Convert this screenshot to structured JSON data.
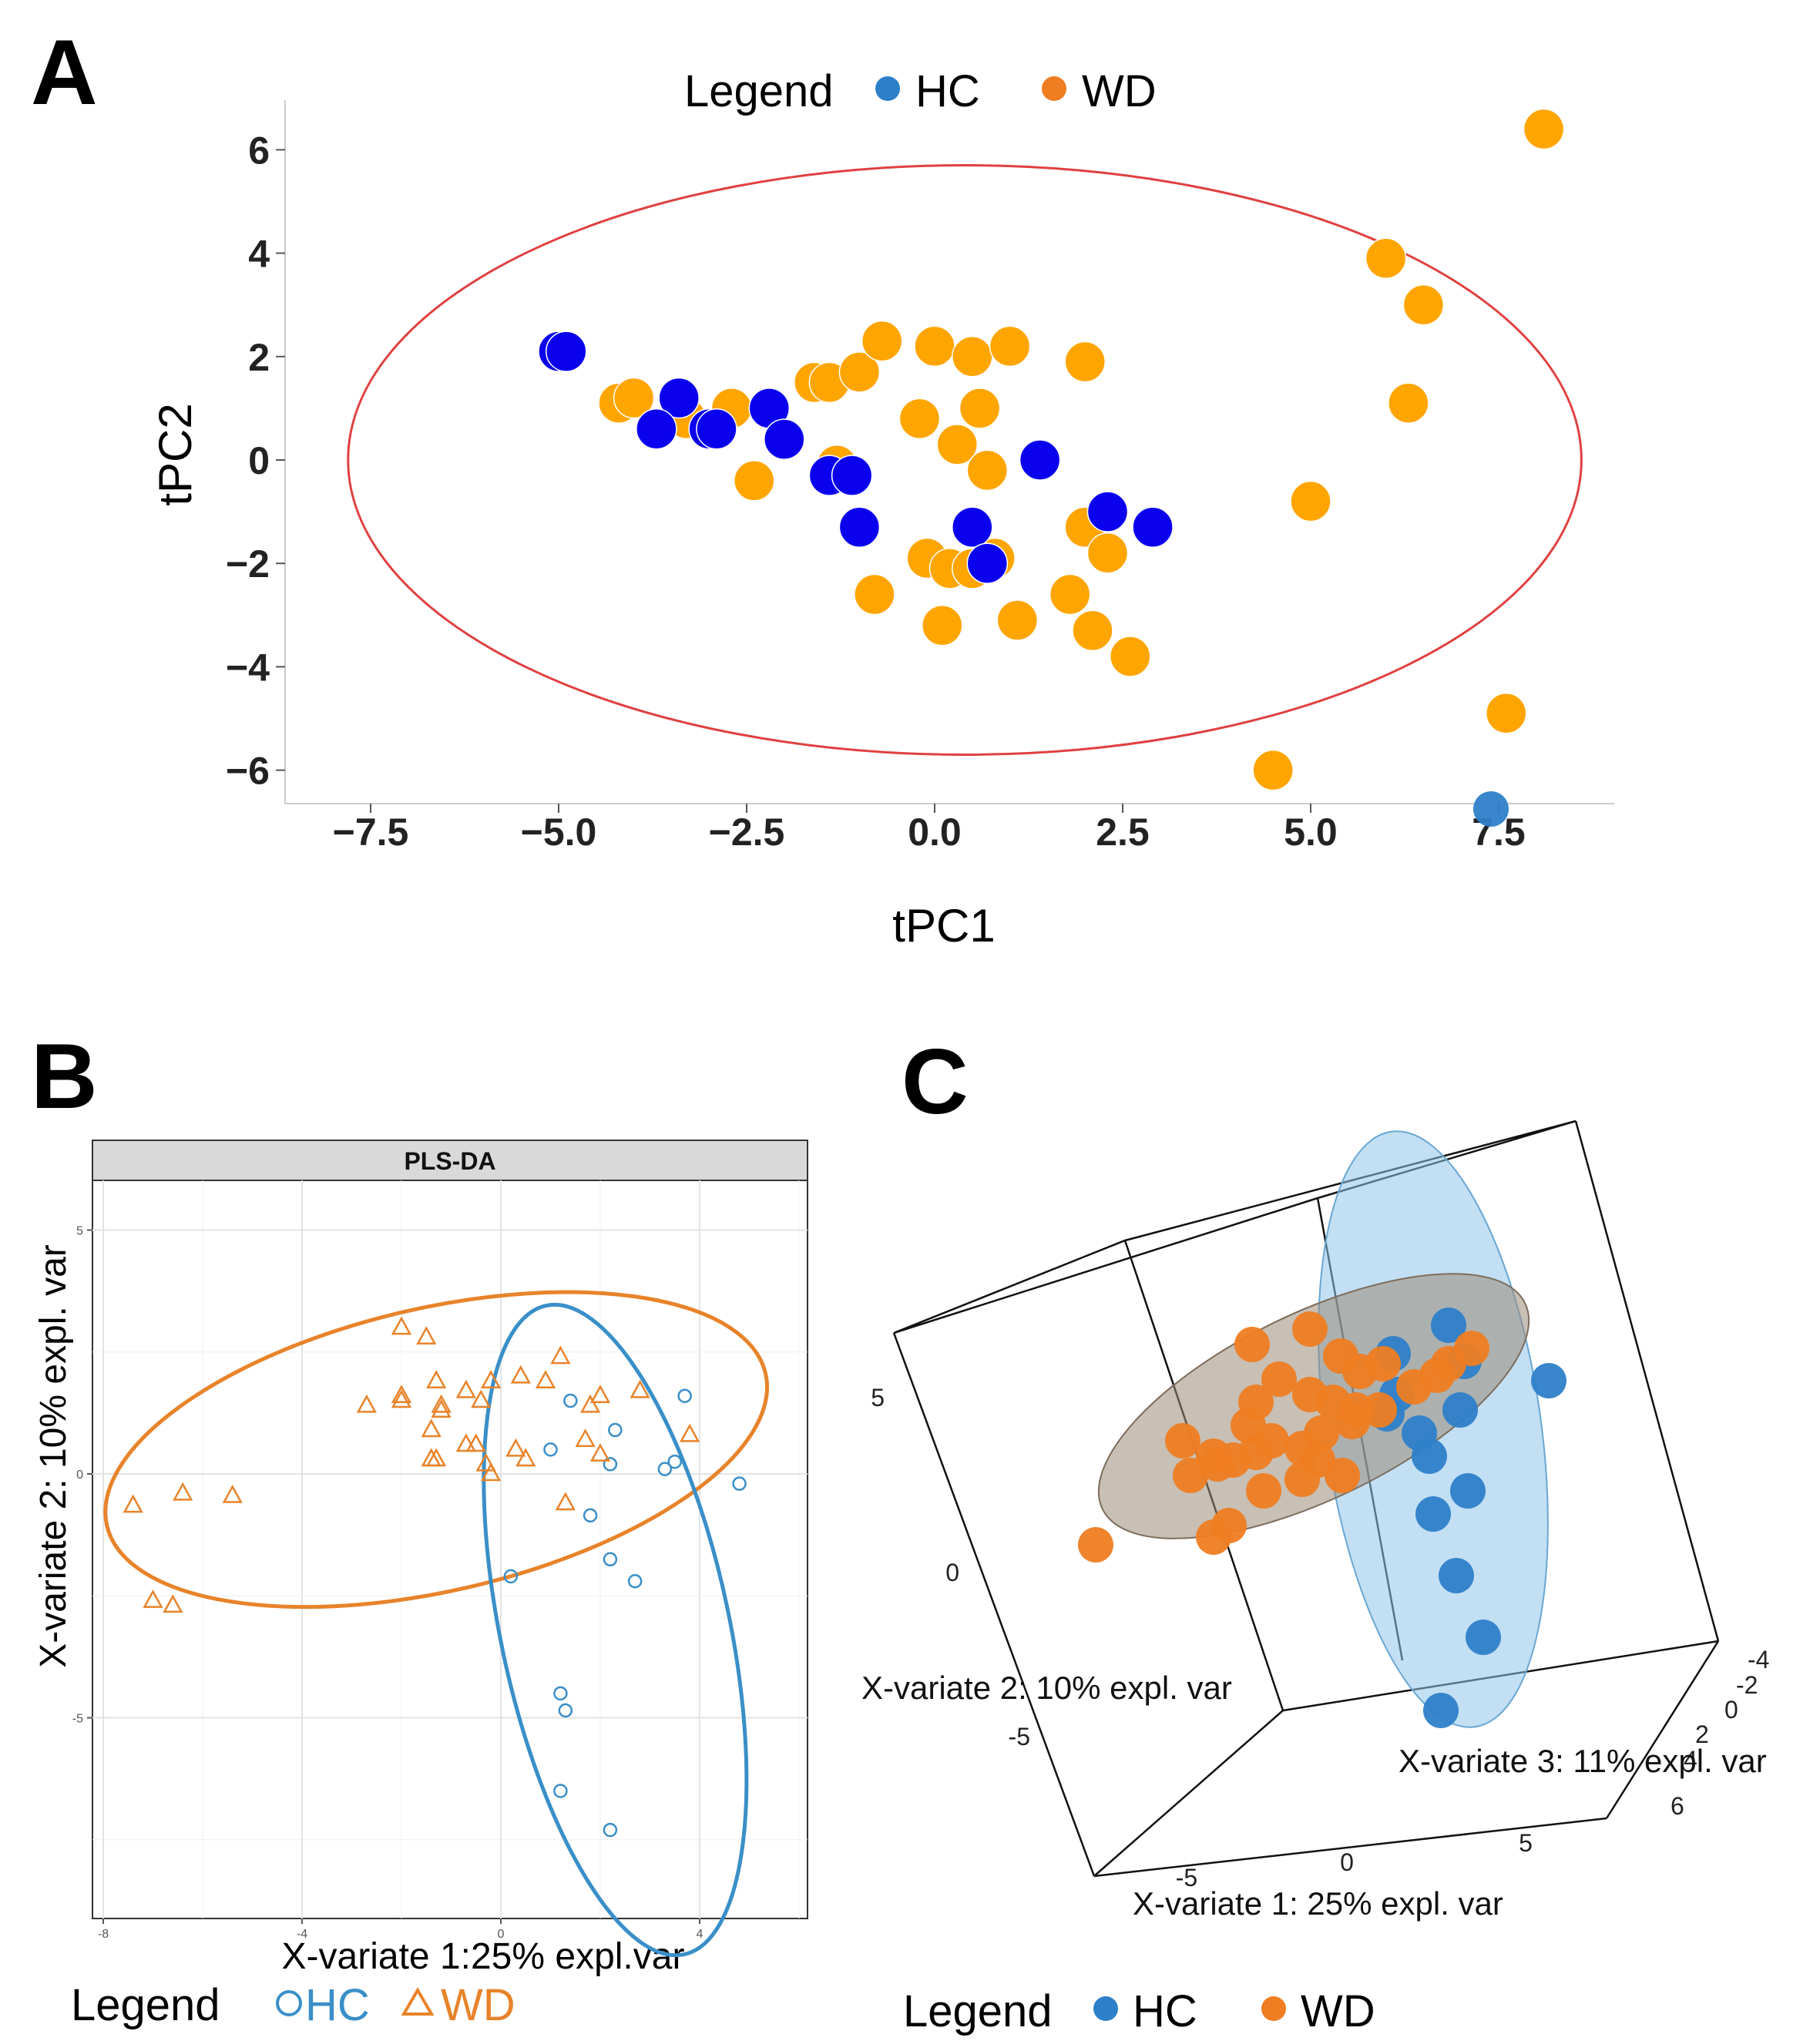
{
  "figure": {
    "panel_letters": [
      "A",
      "B",
      "C"
    ]
  },
  "colors": {
    "hc_a": "#0a00ee",
    "wd_a": "#ffa500",
    "hc_b": "#3a8fc8",
    "wd_b": "#e8832a",
    "hc_legend": "#2e7fc9",
    "wd_legend": "#ef7d22",
    "ellipse_a": "#e04040"
  },
  "chart_data": [
    {
      "panel": "A",
      "type": "scatter",
      "title": "",
      "xlabel": "tPC1",
      "ylabel": "tPC2",
      "xlim": [
        -9.0,
        9.0
      ],
      "ylim": [
        -6.5,
        7.0
      ],
      "xticks": [
        -7.5,
        -5.0,
        -2.5,
        0.0,
        2.5,
        5.0,
        7.5
      ],
      "xtick_labels": [
        "−7.5",
        "−5.0",
        "−2.5",
        "0.0",
        "2.5",
        "5.0",
        "7.5"
      ],
      "yticks": [
        6,
        4,
        2,
        0,
        -2,
        -4,
        -6
      ],
      "ytick_labels": [
        "6",
        "4",
        "2",
        "0",
        "−2",
        "−4",
        "−6"
      ],
      "legend": {
        "title": "Legend",
        "entries": [
          "HC",
          "WD"
        ],
        "position": "top"
      },
      "ellipse": {
        "center": [
          0.4,
          0.0
        ],
        "rx": 8.2,
        "ry": 5.7
      },
      "series": [
        {
          "name": "HC",
          "points": [
            [
              -5.0,
              2.1
            ],
            [
              -4.9,
              2.1
            ],
            [
              -3.4,
              1.2
            ],
            [
              -3.7,
              0.6
            ],
            [
              -3.0,
              0.6
            ],
            [
              -2.9,
              0.6
            ],
            [
              -2.2,
              1.0
            ],
            [
              -2.0,
              0.4
            ],
            [
              -1.4,
              -0.3
            ],
            [
              -1.1,
              -0.3
            ],
            [
              -1.0,
              -1.3
            ],
            [
              0.5,
              -1.3
            ],
            [
              0.7,
              -2.0
            ],
            [
              1.4,
              0.0
            ],
            [
              2.3,
              -1.0
            ],
            [
              2.9,
              -1.3
            ]
          ]
        },
        {
          "name": "WD",
          "points": [
            [
              8.1,
              6.4
            ],
            [
              6.0,
              3.9
            ],
            [
              6.5,
              3.0
            ],
            [
              6.3,
              1.1
            ],
            [
              5.0,
              -0.8
            ],
            [
              7.6,
              -4.9
            ],
            [
              4.5,
              -6.0
            ],
            [
              -4.2,
              1.1
            ],
            [
              -4.0,
              1.2
            ],
            [
              -3.3,
              0.8
            ],
            [
              -3.0,
              0.6
            ],
            [
              -2.7,
              1.0
            ],
            [
              -2.4,
              -0.4
            ],
            [
              -1.6,
              1.5
            ],
            [
              -1.4,
              1.5
            ],
            [
              -1.3,
              -0.1
            ],
            [
              -1.0,
              1.7
            ],
            [
              -0.7,
              2.3
            ],
            [
              -0.2,
              0.8
            ],
            [
              0.0,
              2.2
            ],
            [
              0.3,
              0.3
            ],
            [
              0.5,
              2.0
            ],
            [
              0.6,
              1.0
            ],
            [
              0.7,
              -0.2
            ],
            [
              1.0,
              2.2
            ],
            [
              2.0,
              1.9
            ],
            [
              -0.1,
              -1.9
            ],
            [
              0.2,
              -2.1
            ],
            [
              0.5,
              -2.1
            ],
            [
              0.8,
              -1.9
            ],
            [
              -0.8,
              -2.6
            ],
            [
              0.1,
              -3.2
            ],
            [
              1.1,
              -3.1
            ],
            [
              1.8,
              -2.6
            ],
            [
              2.0,
              -1.3
            ],
            [
              2.3,
              -1.8
            ],
            [
              2.1,
              -3.3
            ],
            [
              2.6,
              -3.8
            ]
          ]
        }
      ]
    },
    {
      "panel": "B",
      "type": "scatter",
      "strip_title": "PLS-DA",
      "xlabel": "X-variate 1:25% expl.var",
      "ylabel": "X-variate 2: 10% expl. var",
      "xlim": [
        -8.2,
        6.2
      ],
      "ylim": [
        -9.1,
        6.0
      ],
      "xticks": [
        -8,
        -4,
        0,
        4
      ],
      "xtick_labels": [
        "-8",
        "-4",
        "0",
        "4"
      ],
      "yticks": [
        5,
        0,
        -5
      ],
      "ytick_labels": [
        "5",
        "0",
        "-5"
      ],
      "legend": {
        "title": "Legend",
        "entries": [
          "HC",
          "WD"
        ],
        "position": "bottom"
      },
      "ellipses": [
        {
          "group": "WD",
          "center": [
            -1.3,
            0.5
          ],
          "rx": 6.8,
          "ry": 2.9,
          "angle_deg": -13
        },
        {
          "group": "HC",
          "center": [
            2.3,
            -3.2
          ],
          "rx": 2.3,
          "ry": 6.8,
          "angle_deg": -12
        }
      ],
      "series": [
        {
          "name": "HC",
          "points": [
            [
              1.4,
              1.5
            ],
            [
              2.3,
              0.9
            ],
            [
              3.7,
              1.6
            ],
            [
              1.0,
              0.5
            ],
            [
              2.2,
              0.2
            ],
            [
              3.3,
              0.1
            ],
            [
              3.5,
              0.25
            ],
            [
              4.8,
              -0.2
            ],
            [
              1.8,
              -0.85
            ],
            [
              2.2,
              -1.75
            ],
            [
              2.7,
              -2.2
            ],
            [
              0.2,
              -2.1
            ],
            [
              1.2,
              -4.5
            ],
            [
              1.3,
              -4.85
            ],
            [
              1.2,
              -6.5
            ],
            [
              2.2,
              -7.3
            ]
          ]
        },
        {
          "name": "WD",
          "points": [
            [
              -2.0,
              3.0
            ],
            [
              -1.5,
              2.8
            ],
            [
              1.2,
              2.4
            ],
            [
              -2.0,
              1.5
            ],
            [
              -2.0,
              1.6
            ],
            [
              -1.3,
              1.9
            ],
            [
              -0.7,
              1.7
            ],
            [
              -0.2,
              1.9
            ],
            [
              0.4,
              2.0
            ],
            [
              0.9,
              1.9
            ],
            [
              -2.7,
              1.4
            ],
            [
              -1.2,
              1.3
            ],
            [
              -1.2,
              1.4
            ],
            [
              -0.4,
              1.5
            ],
            [
              2.0,
              1.6
            ],
            [
              1.8,
              1.4
            ],
            [
              2.8,
              1.7
            ],
            [
              -1.4,
              0.9
            ],
            [
              -0.7,
              0.6
            ],
            [
              -0.5,
              0.6
            ],
            [
              -0.3,
              0.2
            ],
            [
              -0.2,
              0.0
            ],
            [
              0.3,
              0.5
            ],
            [
              0.5,
              0.3
            ],
            [
              1.7,
              0.7
            ],
            [
              2.0,
              0.4
            ],
            [
              3.8,
              0.8
            ],
            [
              -1.4,
              0.3
            ],
            [
              -1.3,
              0.3
            ],
            [
              1.3,
              -0.6
            ],
            [
              -7.4,
              -0.65
            ],
            [
              -6.4,
              -0.4
            ],
            [
              -5.4,
              -0.45
            ],
            [
              -7.0,
              -2.6
            ],
            [
              -6.6,
              -2.7
            ]
          ]
        }
      ]
    },
    {
      "panel": "C",
      "type": "scatter",
      "title": "",
      "xlabel": "X-variate 1: 25% expl. var",
      "ylabel": "X-variate 2: 10% expl. var",
      "zlabel": "X-variate 3: 11% expl. var",
      "xtick_labels": [
        "-5",
        "0",
        "5"
      ],
      "ytick_labels": [
        "5",
        "0",
        "-5"
      ],
      "ztick_labels": [
        "-4",
        "-2",
        "0",
        "2",
        "4",
        "6"
      ],
      "legend": {
        "title": "Legend",
        "entries": [
          "HC",
          "WD"
        ],
        "position": "bottom"
      },
      "series": [
        {
          "name": "HC",
          "screen_points": [
            [
              1935,
              1050
            ],
            [
              2010,
              1792
            ],
            [
              1900,
              1767
            ],
            [
              1880,
              1720
            ],
            [
              1808,
              1757
            ],
            [
              1813,
              1810
            ],
            [
              1905,
              1935
            ],
            [
              1890,
              2045
            ],
            [
              1870,
              2220
            ],
            [
              1925,
              2125
            ],
            [
              1860,
              1965
            ],
            [
              1855,
              1890
            ],
            [
              1842,
              1860
            ],
            [
              1800,
              1835
            ],
            [
              1895,
              1830
            ]
          ]
        },
        {
          "name": "WD",
          "screen_points": [
            [
              1625,
              1745
            ],
            [
              1700,
              1725
            ],
            [
              1740,
              1760
            ],
            [
              1765,
              1780
            ],
            [
              1795,
              1770
            ],
            [
              1660,
              1790
            ],
            [
              1700,
              1810
            ],
            [
              1730,
              1820
            ],
            [
              1760,
              1830
            ],
            [
              1630,
              1820
            ],
            [
              1620,
              1850
            ],
            [
              1650,
              1870
            ],
            [
              1690,
              1880
            ],
            [
              1715,
              1860
            ],
            [
              1755,
              1845
            ],
            [
              1790,
              1830
            ],
            [
              1835,
              1800
            ],
            [
              1865,
              1785
            ],
            [
              1880,
              1770
            ],
            [
              1910,
              1750
            ],
            [
              1535,
              1870
            ],
            [
              1580,
              1900
            ],
            [
              1545,
              1915
            ],
            [
              1630,
              1885
            ],
            [
              1600,
              1895
            ],
            [
              1690,
              1920
            ],
            [
              1710,
              1895
            ],
            [
              1595,
              1980
            ],
            [
              1575,
              1995
            ],
            [
              1422,
              2005
            ],
            [
              1575,
              1890
            ],
            [
              1640,
              1935
            ],
            [
              1742,
              1915
            ]
          ]
        }
      ]
    }
  ]
}
